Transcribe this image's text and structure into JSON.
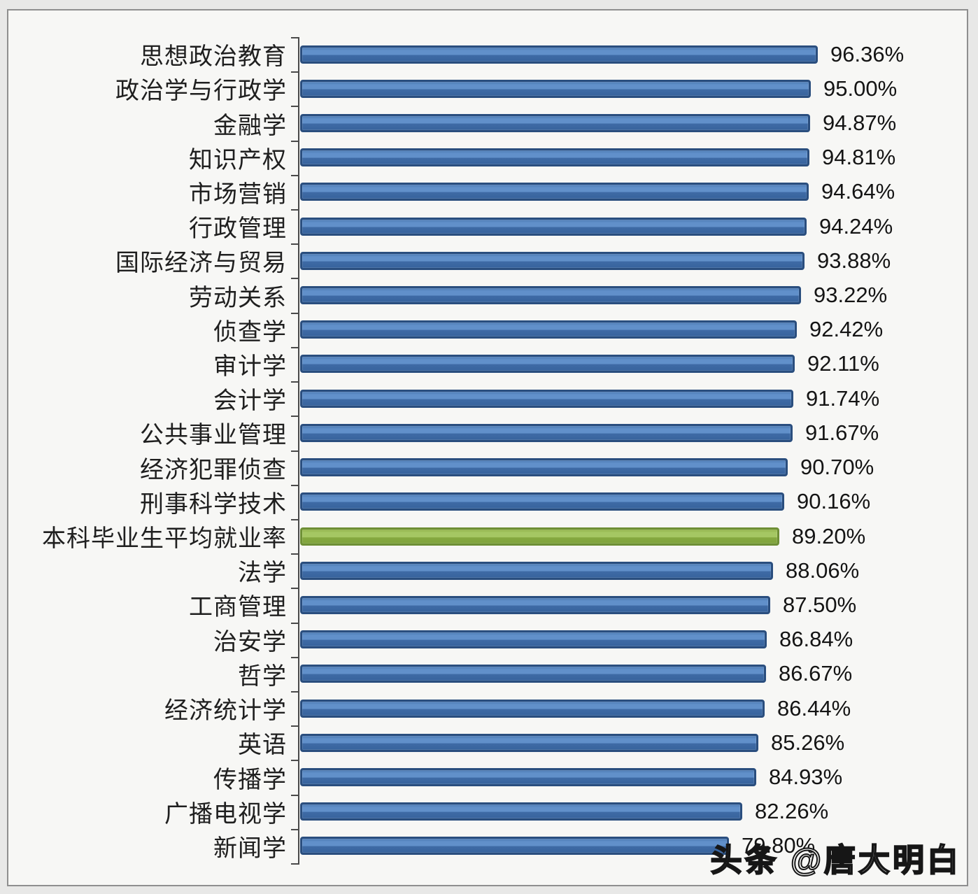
{
  "watermark": "头条 @唐大明白",
  "chart_data": {
    "type": "bar",
    "orientation": "horizontal",
    "title": "",
    "xlabel": "",
    "ylabel": "",
    "legend": "none",
    "grid": false,
    "xlim": [
      0,
      100
    ],
    "value_unit": "%",
    "highlight_category": "本科毕业生平均就业率",
    "categories": [
      "思想政治教育",
      "政治学与行政学",
      "金融学",
      "知识产权",
      "市场营销",
      "行政管理",
      "国际经济与贸易",
      "劳动关系",
      "侦查学",
      "审计学",
      "会计学",
      "公共事业管理",
      "经济犯罪侦查",
      "刑事科学技术",
      "本科毕业生平均就业率",
      "法学",
      "工商管理",
      "治安学",
      "哲学",
      "经济统计学",
      "英语",
      "传播学",
      "广播电视学",
      "新闻学"
    ],
    "values": [
      96.36,
      95.0,
      94.87,
      94.81,
      94.64,
      94.24,
      93.88,
      93.22,
      92.42,
      92.11,
      91.74,
      91.67,
      90.7,
      90.16,
      89.2,
      88.06,
      87.5,
      86.84,
      86.67,
      86.44,
      85.26,
      84.93,
      82.26,
      79.8
    ],
    "rows": [
      {
        "label": "思想政治教育",
        "value": 96.36,
        "display": "96.36%",
        "highlight": false
      },
      {
        "label": "政治学与行政学",
        "value": 95.0,
        "display": "95.00%",
        "highlight": false
      },
      {
        "label": "金融学",
        "value": 94.87,
        "display": "94.87%",
        "highlight": false
      },
      {
        "label": "知识产权",
        "value": 94.81,
        "display": "94.81%",
        "highlight": false
      },
      {
        "label": "市场营销",
        "value": 94.64,
        "display": "94.64%",
        "highlight": false
      },
      {
        "label": "行政管理",
        "value": 94.24,
        "display": "94.24%",
        "highlight": false
      },
      {
        "label": "国际经济与贸易",
        "value": 93.88,
        "display": "93.88%",
        "highlight": false
      },
      {
        "label": "劳动关系",
        "value": 93.22,
        "display": "93.22%",
        "highlight": false
      },
      {
        "label": "侦查学",
        "value": 92.42,
        "display": "92.42%",
        "highlight": false
      },
      {
        "label": "审计学",
        "value": 92.11,
        "display": "92.11%",
        "highlight": false
      },
      {
        "label": "会计学",
        "value": 91.74,
        "display": "91.74%",
        "highlight": false
      },
      {
        "label": "公共事业管理",
        "value": 91.67,
        "display": "91.67%",
        "highlight": false
      },
      {
        "label": "经济犯罪侦查",
        "value": 90.7,
        "display": "90.70%",
        "highlight": false
      },
      {
        "label": "刑事科学技术",
        "value": 90.16,
        "display": "90.16%",
        "highlight": false
      },
      {
        "label": "本科毕业生平均就业率",
        "value": 89.2,
        "display": "89.20%",
        "highlight": true
      },
      {
        "label": "法学",
        "value": 88.06,
        "display": "88.06%",
        "highlight": false
      },
      {
        "label": "工商管理",
        "value": 87.5,
        "display": "87.50%",
        "highlight": false
      },
      {
        "label": "治安学",
        "value": 86.84,
        "display": "86.84%",
        "highlight": false
      },
      {
        "label": "哲学",
        "value": 86.67,
        "display": "86.67%",
        "highlight": false
      },
      {
        "label": "经济统计学",
        "value": 86.44,
        "display": "86.44%",
        "highlight": false
      },
      {
        "label": "英语",
        "value": 85.26,
        "display": "85.26%",
        "highlight": false
      },
      {
        "label": "传播学",
        "value": 84.93,
        "display": "84.93%",
        "highlight": false
      },
      {
        "label": "广播电视学",
        "value": 82.26,
        "display": "82.26%",
        "highlight": false
      },
      {
        "label": "新闻学",
        "value": 79.8,
        "display": "79.80%",
        "highlight": false
      }
    ],
    "colors": {
      "bar_fill": "#4f7bb3",
      "bar_border": "#2a4e7e",
      "highlight_fill": "#9bbb59",
      "highlight_border": "#6e8f35",
      "chart_background": "#f7f7f5",
      "outer_background": "#e8e8e7",
      "axis": "#4a4a4a",
      "text": "#1f1f1f"
    }
  }
}
